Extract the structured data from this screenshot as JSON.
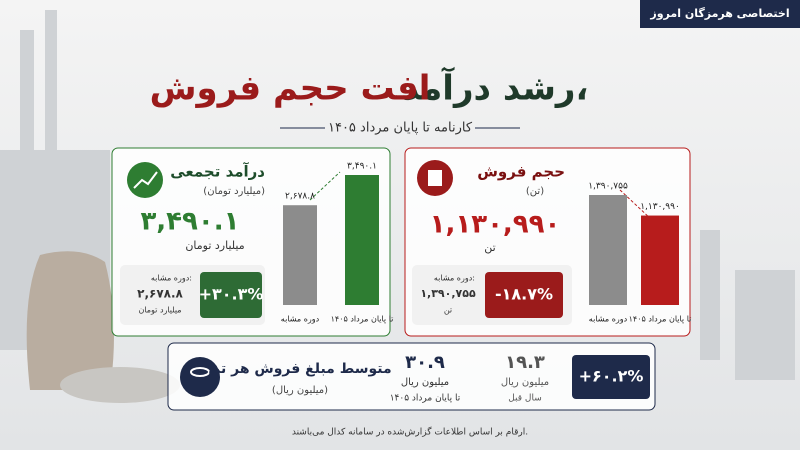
{
  "badge": "اختصاصی هرمزگان امروز",
  "header": {
    "title_part1": "رشد درآمد،",
    "title_part2": "افت حجم فروش",
    "subtitle": "کارنامه تا پایان مرداد ۱۴۰۵"
  },
  "revenue": {
    "title": "درآمد تجمعی",
    "unit": "(میلیارد تومان)",
    "value": "۳,۴۹۰.۱",
    "value_unit": "میلیارد تومان",
    "prev_label": "دوره مشابه:",
    "prev_value": "۲,۶۷۸.۸",
    "prev_unit": "میلیارد تومان",
    "change": "+۳۰.۳%"
  },
  "volume": {
    "title": "حجم فروش",
    "unit": "(تن)",
    "value": "۱,۱۳۰,۹۹۰",
    "value_unit": "تن",
    "prev_label": "دوره مشابه:",
    "prev_value": "۱,۳۹۰,۷۵۵",
    "prev_unit": "تن",
    "change": "-۱۸.۷%"
  },
  "average_price": {
    "title": "متوسط مبلغ فروش هر تن",
    "unit": "(میلیون ریال)",
    "current_value": "۳۰.۹",
    "current_unit": "میلیون ریال",
    "current_period": "تا پایان مرداد ۱۴۰۵",
    "prev_value": "۱۹.۳",
    "prev_unit": "میلیون ریال",
    "prev_period": "سال قبل",
    "change": "+۶۰.۲%"
  },
  "footnote": "ارقام بر اساس اطلاعات گزارش‌شده در سامانه کدال می‌باشند.",
  "chart_data": [
    {
      "type": "bar",
      "categories": [
        "دوره مشابه",
        "تا پایان مرداد ۱۴۰۵"
      ],
      "values": [
        2678.8,
        3490.1
      ],
      "value_labels": [
        "۲,۶۷۸.۸",
        "۳,۴۹۰.۱"
      ],
      "colors": [
        "#8c8c8c",
        "#2e7d32"
      ]
    },
    {
      "type": "bar",
      "categories": [
        "دوره مشابه",
        "تا پایان مرداد ۱۴۰۵"
      ],
      "values": [
        1390755,
        1130990
      ],
      "value_labels": [
        "۱,۳۹۰,۷۵۵",
        "۱,۱۳۰,۹۹۰"
      ],
      "colors": [
        "#8c8c8c",
        "#b71c1c"
      ]
    }
  ]
}
